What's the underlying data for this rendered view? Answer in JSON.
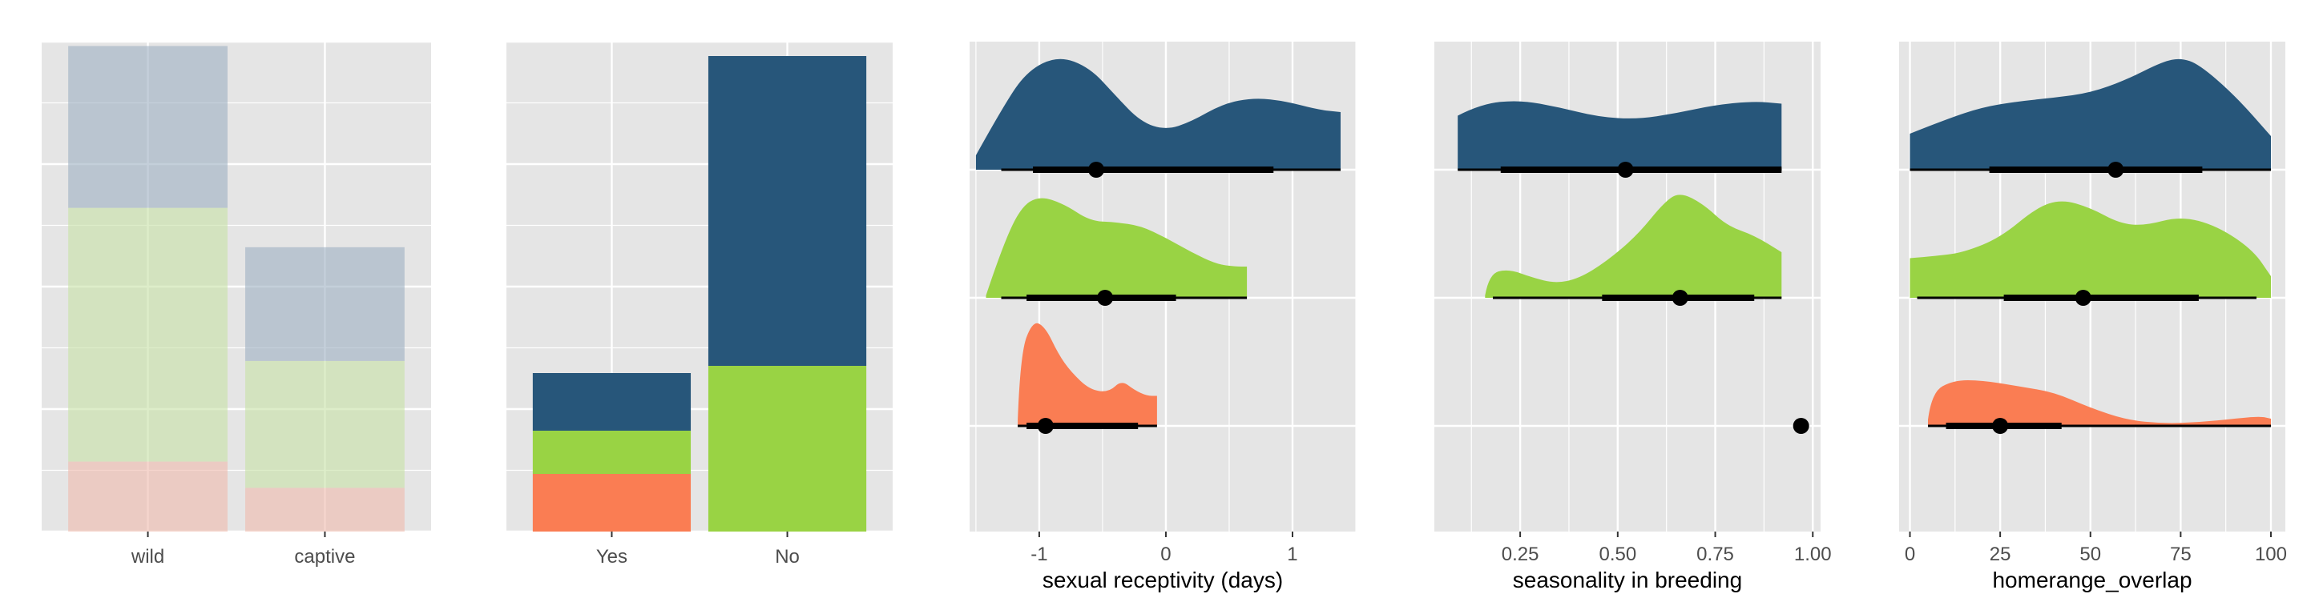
{
  "chart_data": [
    {
      "type": "bar",
      "stacked": true,
      "categories": [
        "wild",
        "captive"
      ],
      "series": [
        {
          "color": "#EFBCAE",
          "values": [
            16,
            10
          ]
        },
        {
          "color": "#C8E2A8",
          "values": [
            58,
            29
          ]
        },
        {
          "color": "#9FB1C3",
          "values": [
            37,
            26
          ]
        }
      ],
      "ylim": [
        0,
        112
      ],
      "grid": true
    },
    {
      "type": "bar",
      "stacked": true,
      "categories": [
        "Yes",
        "No"
      ],
      "series": [
        {
          "color": "#FA7D53",
          "values": [
            8,
            0
          ]
        },
        {
          "color": "#99D344",
          "values": [
            6,
            23
          ]
        },
        {
          "color": "#27567A",
          "values": [
            8,
            43
          ]
        }
      ],
      "ylim": [
        0,
        68
      ],
      "grid": true
    },
    {
      "type": "area",
      "subtype": "halfeye",
      "xlabel": "sexual receptivity (days)",
      "xticks": [
        -1,
        0,
        1
      ],
      "xlim": [
        -1.55,
        1.5
      ],
      "grid": true,
      "series": [
        {
          "color": "#27567A",
          "density": [
            [
              -1.5,
              0.12
            ],
            [
              -1.3,
              0.5
            ],
            [
              -1.1,
              0.82
            ],
            [
              -0.85,
              0.95
            ],
            [
              -0.6,
              0.85
            ],
            [
              -0.4,
              0.62
            ],
            [
              -0.2,
              0.4
            ],
            [
              0,
              0.33
            ],
            [
              0.2,
              0.4
            ],
            [
              0.45,
              0.55
            ],
            [
              0.7,
              0.6
            ],
            [
              0.95,
              0.57
            ],
            [
              1.2,
              0.5
            ],
            [
              1.38,
              0.48
            ]
          ],
          "point": -0.55,
          "interval_thick": [
            -1.05,
            0.85
          ],
          "interval_thin": [
            -1.3,
            1.38
          ]
        },
        {
          "color": "#99D344",
          "density": [
            [
              -1.42,
              0.02
            ],
            [
              -1.3,
              0.4
            ],
            [
              -1.15,
              0.75
            ],
            [
              -1,
              0.85
            ],
            [
              -0.8,
              0.78
            ],
            [
              -0.6,
              0.64
            ],
            [
              -0.4,
              0.63
            ],
            [
              -0.2,
              0.6
            ],
            [
              0,
              0.5
            ],
            [
              0.2,
              0.38
            ],
            [
              0.4,
              0.28
            ],
            [
              0.55,
              0.26
            ],
            [
              0.64,
              0.26
            ]
          ],
          "point": -0.48,
          "interval_thick": [
            -1.1,
            0.08
          ],
          "interval_thin": [
            -1.3,
            0.64
          ]
        },
        {
          "color": "#FA7D53",
          "density": [
            [
              -1.17,
              0.05
            ],
            [
              -1.15,
              0.6
            ],
            [
              -1.05,
              0.88
            ],
            [
              -0.95,
              0.82
            ],
            [
              -0.85,
              0.6
            ],
            [
              -0.75,
              0.45
            ],
            [
              -0.6,
              0.3
            ],
            [
              -0.45,
              0.28
            ],
            [
              -0.35,
              0.38
            ],
            [
              -0.25,
              0.3
            ],
            [
              -0.15,
              0.25
            ],
            [
              -0.07,
              0.25
            ]
          ],
          "point": -0.95,
          "interval_thick": [
            -1.1,
            -0.22
          ],
          "interval_thin": [
            -1.17,
            -0.07
          ]
        }
      ]
    },
    {
      "type": "area",
      "subtype": "halfeye",
      "xlabel": "seasonality in breeding",
      "xticks": [
        0.25,
        0.5,
        0.75,
        1.0
      ],
      "xticklabels": [
        "0.25",
        "0.50",
        "0.75",
        "1.00"
      ],
      "xlim": [
        0.03,
        1.02
      ],
      "grid": true,
      "series": [
        {
          "color": "#27567A",
          "density": [
            [
              0.09,
              0.45
            ],
            [
              0.15,
              0.55
            ],
            [
              0.25,
              0.58
            ],
            [
              0.35,
              0.52
            ],
            [
              0.45,
              0.44
            ],
            [
              0.55,
              0.42
            ],
            [
              0.65,
              0.47
            ],
            [
              0.75,
              0.54
            ],
            [
              0.85,
              0.57
            ],
            [
              0.92,
              0.55
            ]
          ],
          "point": 0.52,
          "interval_thick": [
            0.2,
            0.92
          ],
          "interval_thin": [
            0.09,
            0.92
          ]
        },
        {
          "color": "#99D344",
          "density": [
            [
              0.16,
              0.02
            ],
            [
              0.17,
              0.2
            ],
            [
              0.22,
              0.24
            ],
            [
              0.28,
              0.17
            ],
            [
              0.34,
              0.12
            ],
            [
              0.4,
              0.16
            ],
            [
              0.47,
              0.3
            ],
            [
              0.55,
              0.52
            ],
            [
              0.62,
              0.8
            ],
            [
              0.66,
              0.88
            ],
            [
              0.72,
              0.78
            ],
            [
              0.78,
              0.6
            ],
            [
              0.85,
              0.52
            ],
            [
              0.92,
              0.38
            ]
          ],
          "point": 0.66,
          "interval_thick": [
            0.46,
            0.85
          ],
          "interval_thin": [
            0.18,
            0.92
          ]
        },
        {
          "color": "#FA7D53",
          "density": [],
          "point": 0.97,
          "interval_thick": [
            0.97,
            0.97
          ],
          "interval_thin": [
            0.97,
            0.97
          ]
        }
      ]
    },
    {
      "type": "area",
      "subtype": "halfeye",
      "xlabel": "homerange_overlap",
      "xticks": [
        0,
        25,
        50,
        75,
        100
      ],
      "xlim": [
        -3,
        104
      ],
      "grid": true,
      "series": [
        {
          "color": "#27567A",
          "density": [
            [
              0,
              0.3
            ],
            [
              10,
              0.42
            ],
            [
              20,
              0.52
            ],
            [
              30,
              0.57
            ],
            [
              40,
              0.6
            ],
            [
              50,
              0.64
            ],
            [
              60,
              0.75
            ],
            [
              70,
              0.9
            ],
            [
              75,
              0.93
            ],
            [
              80,
              0.88
            ],
            [
              90,
              0.62
            ],
            [
              100,
              0.28
            ]
          ],
          "point": 57,
          "interval_thick": [
            22,
            81
          ],
          "interval_thin": [
            0,
            100
          ]
        },
        {
          "color": "#99D344",
          "density": [
            [
              0,
              0.33
            ],
            [
              8,
              0.35
            ],
            [
              15,
              0.38
            ],
            [
              25,
              0.5
            ],
            [
              35,
              0.75
            ],
            [
              42,
              0.82
            ],
            [
              50,
              0.75
            ],
            [
              58,
              0.62
            ],
            [
              65,
              0.6
            ],
            [
              75,
              0.68
            ],
            [
              85,
              0.6
            ],
            [
              95,
              0.4
            ],
            [
              100,
              0.18
            ]
          ],
          "point": 48,
          "interval_thick": [
            26,
            80
          ],
          "interval_thin": [
            2,
            96
          ]
        },
        {
          "color": "#FA7D53",
          "density": [
            [
              5,
              0.05
            ],
            [
              6,
              0.28
            ],
            [
              12,
              0.38
            ],
            [
              20,
              0.38
            ],
            [
              30,
              0.33
            ],
            [
              40,
              0.28
            ],
            [
              50,
              0.15
            ],
            [
              60,
              0.05
            ],
            [
              70,
              0.02
            ],
            [
              80,
              0.03
            ],
            [
              90,
              0.06
            ],
            [
              97,
              0.08
            ],
            [
              100,
              0.06
            ]
          ],
          "point": 25,
          "interval_thick": [
            10,
            42
          ],
          "interval_thin": [
            5,
            100
          ]
        }
      ]
    }
  ]
}
